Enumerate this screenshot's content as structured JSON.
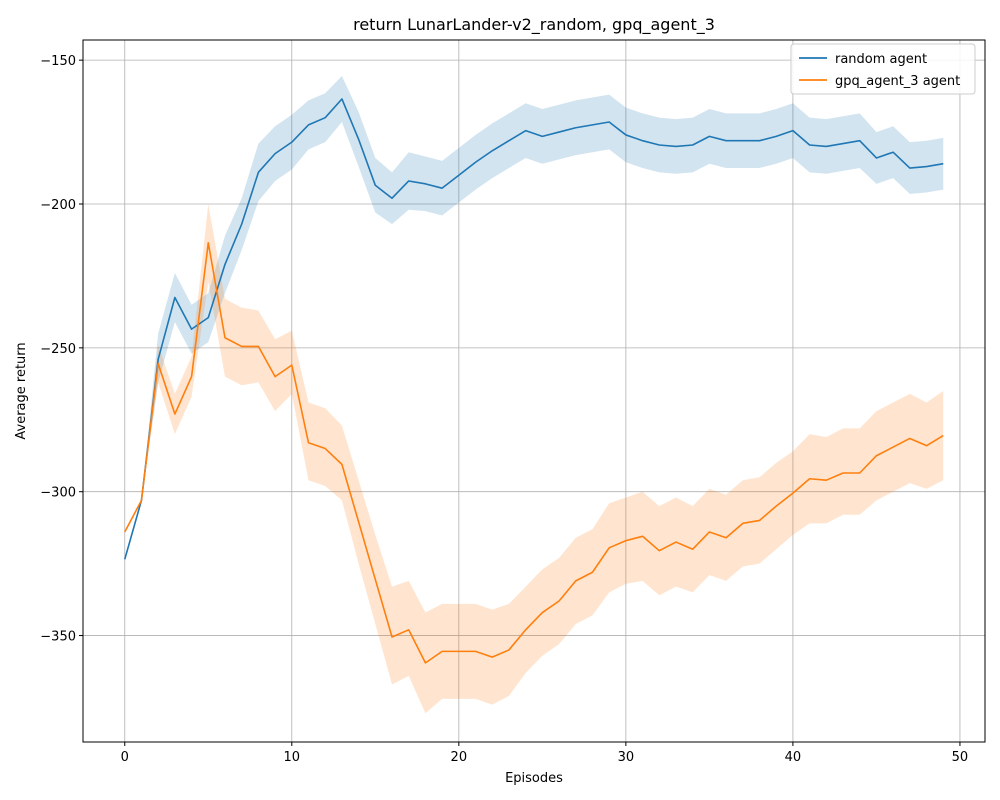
{
  "chart_data": {
    "type": "line",
    "title": "return LunarLander-v2_random, gpq_agent_3",
    "xlabel": "Episodes",
    "ylabel": "Average return",
    "xlim": [
      -2.5,
      51.5
    ],
    "ylim": [
      -387,
      -143
    ],
    "xticks": [
      0,
      10,
      20,
      30,
      40,
      50
    ],
    "yticks": [
      -150,
      -200,
      -250,
      -300,
      -350
    ],
    "ytick_labels": [
      "−150",
      "−200",
      "−250",
      "−300",
      "−350"
    ],
    "grid": true,
    "legend": "top-right",
    "x": [
      0,
      1,
      2,
      3,
      4,
      5,
      6,
      7,
      8,
      9,
      10,
      11,
      12,
      13,
      14,
      15,
      16,
      17,
      18,
      19,
      20,
      21,
      22,
      23,
      24,
      25,
      26,
      27,
      28,
      29,
      30,
      31,
      32,
      33,
      34,
      35,
      36,
      37,
      38,
      39,
      40,
      41,
      42,
      43,
      44,
      45,
      46,
      47,
      48,
      49
    ],
    "series": [
      {
        "name": "random agent",
        "color": "#1f77b4",
        "values": [
          -323.5,
          -303,
          -254,
          -232.5,
          -243.5,
          -239.5,
          -221,
          -207,
          -189,
          -182.5,
          -178.5,
          -172.5,
          -170,
          -163.5,
          -177.5,
          -193.5,
          -198,
          -192,
          -193,
          -194.5,
          -190,
          -185.5,
          -181.5,
          -178,
          -174.5,
          -176.5,
          -175,
          -173.5,
          -172.5,
          -171.5,
          -176,
          -178,
          -179.5,
          -180,
          -179.5,
          -176.5,
          -178,
          -178,
          -178,
          -176.5,
          -174.5,
          -179.5,
          -180,
          -179,
          -178,
          -184,
          -182,
          -187.5,
          -187,
          -186
        ],
        "lower": [
          -323.5,
          -303,
          -262,
          -241,
          -252,
          -248,
          -231,
          -216,
          -199,
          -192,
          -188,
          -181,
          -178.5,
          -171.5,
          -187,
          -203,
          -207,
          -202,
          -202.5,
          -204,
          -199.5,
          -195,
          -191,
          -187.5,
          -184,
          -186,
          -184.5,
          -183,
          -182,
          -181,
          -185.5,
          -187.5,
          -189,
          -189.5,
          -189,
          -186,
          -187.5,
          -187.5,
          -187.5,
          -186,
          -184,
          -189,
          -189.5,
          -188.5,
          -187.5,
          -193,
          -191,
          -196.5,
          -196,
          -195
        ],
        "upper": [
          -323.5,
          -303,
          -245,
          -224,
          -235,
          -231,
          -211,
          -198,
          -179,
          -173,
          -169,
          -164,
          -161.5,
          -155.5,
          -168,
          -184,
          -189,
          -182,
          -183.5,
          -185,
          -180.5,
          -176,
          -172,
          -168.5,
          -165,
          -167,
          -165.5,
          -164,
          -163,
          -162,
          -166.5,
          -168.5,
          -170,
          -170.5,
          -170,
          -167,
          -168.5,
          -168.5,
          -168.5,
          -167,
          -165,
          -170,
          -170.5,
          -169.5,
          -168.5,
          -175,
          -173,
          -178.5,
          -178,
          -177
        ]
      },
      {
        "name": "gpq_agent_3 agent",
        "color": "#ff7f0e",
        "values": [
          -314,
          -303,
          -255.5,
          -273,
          -260,
          -213.5,
          -246.5,
          -249.5,
          -249.5,
          -260,
          -256,
          -283,
          -285,
          -290.5,
          -310.5,
          -330.5,
          -350.5,
          -348,
          -359.5,
          -355.5,
          -355.5,
          -355.5,
          -357.5,
          -355,
          -348,
          -342,
          -338,
          -331,
          -328,
          -319.5,
          -317,
          -315.5,
          -320.5,
          -317.5,
          -320,
          -314,
          -316,
          -311,
          -310,
          -305,
          -300.5,
          -295.5,
          -296,
          -293.5,
          -293.5,
          -287.5,
          -284.5,
          -281.5,
          -284,
          -280.5
        ],
        "lower": [
          -314,
          -303,
          -262,
          -280,
          -267,
          -227,
          -260,
          -263,
          -262,
          -272,
          -266,
          -296,
          -298,
          -303,
          -325,
          -346,
          -367,
          -364,
          -377,
          -372,
          -372,
          -372,
          -374,
          -371,
          -363,
          -357,
          -353,
          -346,
          -343,
          -335,
          -332,
          -331,
          -336,
          -333,
          -335,
          -329,
          -331,
          -326,
          -325,
          -320,
          -315,
          -311,
          -311,
          -308,
          -308,
          -303,
          -300,
          -297,
          -299,
          -296
        ],
        "upper": [
          -314,
          -303,
          -249,
          -266,
          -253,
          -200,
          -233,
          -236,
          -237,
          -247,
          -244,
          -269,
          -271,
          -277,
          -296,
          -315,
          -333,
          -331,
          -342,
          -339,
          -339,
          -339,
          -341,
          -339,
          -333,
          -327,
          -323,
          -316,
          -313,
          -304,
          -302,
          -300,
          -305,
          -302,
          -305,
          -299,
          -301,
          -296,
          -295,
          -290,
          -286,
          -280,
          -281,
          -278,
          -278,
          -272,
          -269,
          -266,
          -269,
          -265
        ]
      }
    ]
  }
}
